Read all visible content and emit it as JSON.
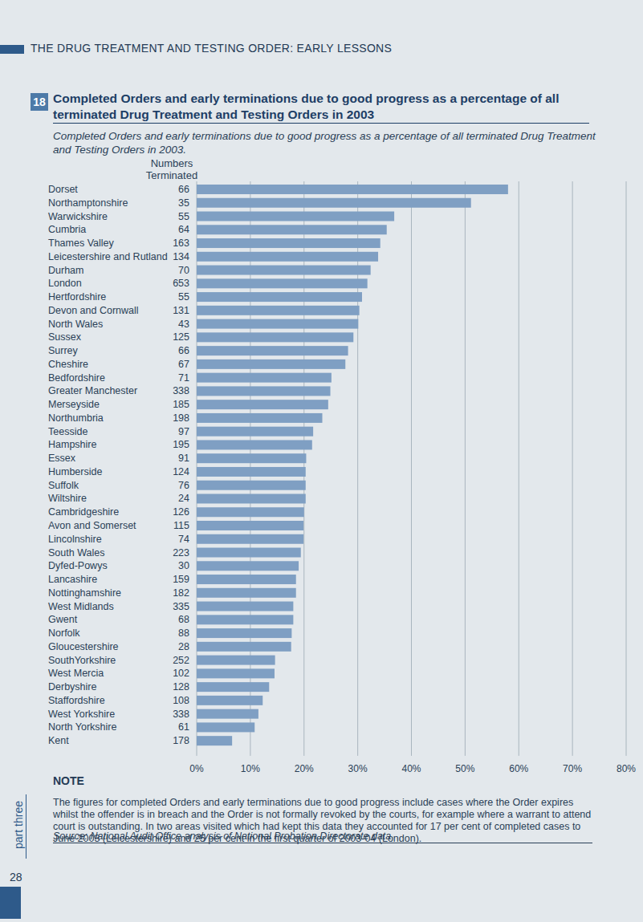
{
  "header": {
    "running_title": "THE DRUG TREATMENT AND TESTING ORDER: EARLY LESSONS",
    "section": "part three",
    "page": "28"
  },
  "chart_data": {
    "type": "bar",
    "orientation": "horizontal",
    "figure_number": "18",
    "title": "Completed Orders and early terminations due to good progress as a percentage of all terminated Drug Treatment and Testing Orders in 2003",
    "subtitle": "Completed Orders and early terminations due to good progress as a percentage of all terminated Drug Treatment and Testing Orders in 2003.",
    "terminated_header": "Numbers Terminated",
    "categories": [
      "Dorset",
      "Northamptonshire",
      "Warwickshire",
      "Cumbria",
      "Thames Valley",
      "Leicestershire and Rutland",
      "Durham",
      "London",
      "Hertfordshire",
      "Devon and Cornwall",
      "North Wales",
      "Sussex",
      "Surrey",
      "Cheshire",
      "Bedfordshire",
      "Greater Manchester",
      "Merseyside",
      "Northumbria",
      "Teesside",
      "Hampshire",
      "Essex",
      "Humberside",
      "Suffolk",
      "Wiltshire",
      "Cambridgeshire",
      "Avon and Somerset",
      "Lincolnshire",
      "South Wales",
      "Dyfed-Powys",
      "Lancashire",
      "Nottinghamshire",
      "West Midlands",
      "Gwent",
      "Norfolk",
      "Gloucestershire",
      "SouthYorkshire",
      "West Mercia",
      "Derbyshire",
      "Staffordshire",
      "West Yorkshire",
      "North Yorkshire",
      "Kent"
    ],
    "terminated": [
      66,
      35,
      55,
      64,
      163,
      134,
      70,
      653,
      55,
      131,
      43,
      125,
      66,
      67,
      71,
      338,
      185,
      198,
      97,
      195,
      91,
      124,
      76,
      24,
      126,
      115,
      74,
      223,
      30,
      159,
      182,
      335,
      68,
      88,
      28,
      252,
      102,
      128,
      108,
      338,
      61,
      178
    ],
    "values": [
      58.0,
      51.1,
      36.8,
      35.4,
      34.2,
      33.8,
      32.4,
      31.8,
      30.8,
      30.3,
      30.1,
      29.2,
      28.2,
      27.7,
      25.1,
      24.9,
      24.5,
      23.4,
      21.7,
      21.5,
      20.4,
      20.3,
      20.3,
      20.3,
      20.0,
      19.9,
      19.9,
      19.4,
      19.0,
      18.5,
      18.5,
      18.0,
      18.0,
      17.7,
      17.6,
      14.6,
      14.5,
      13.5,
      12.3,
      11.5,
      10.8,
      6.6
    ],
    "color": "#7f9fc3",
    "xlim": [
      0,
      80
    ],
    "xticks": [
      {
        "value": 0,
        "label": "0%"
      },
      {
        "value": 10,
        "label": "10%"
      },
      {
        "value": 20,
        "label": "20%"
      },
      {
        "value": 30,
        "label": "30%"
      },
      {
        "value": 40,
        "label": "40%"
      },
      {
        "value": 50,
        "label": "50%"
      },
      {
        "value": 60,
        "label": "60%"
      },
      {
        "value": 70,
        "label": "70%"
      },
      {
        "value": 80,
        "label": "80%"
      }
    ],
    "grid": true,
    "note_heading": "NOTE",
    "note": "The figures for completed Orders and early terminations due to good progress include cases where the Order expires whilst the offender is in breach and the Order is not formally revoked by the courts, for example where a warrant to attend court is outstanding. In two areas visited which had kept this data they accounted for 17 per cent of completed cases to June 2003 (Leicestershire) and 25 per cent in the first quarter of 2003-04 (London).",
    "source": "Source: National Audit Office analysis of National Probation Directorate data"
  }
}
